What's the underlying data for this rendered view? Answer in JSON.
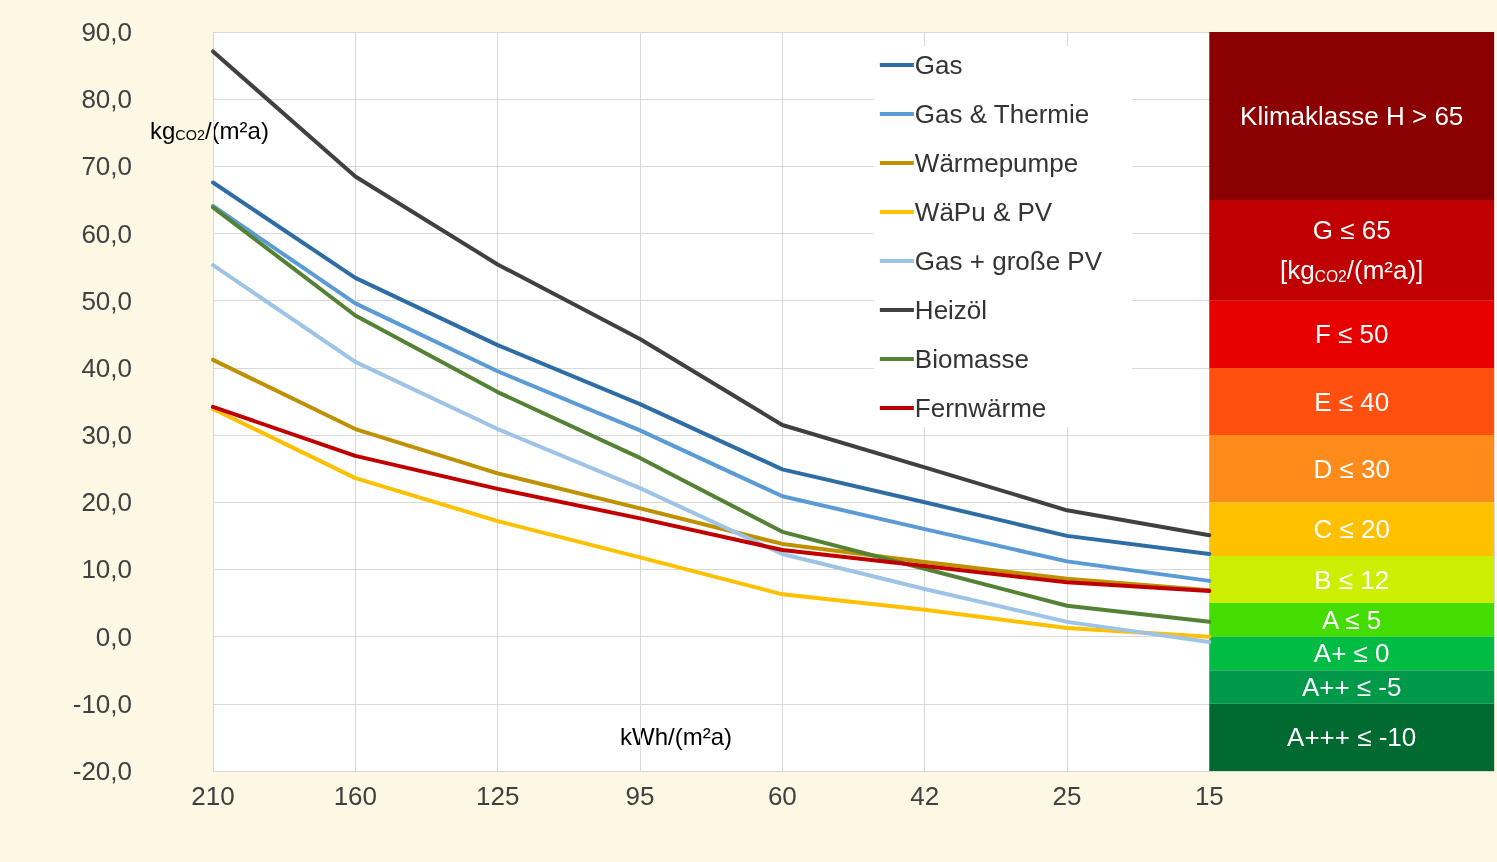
{
  "chart_data": {
    "type": "line",
    "xlabel": "kWh/(m²a)",
    "ylabel": "kg$_{CO2}$/(m²a)",
    "categories": [
      "210",
      "160",
      "125",
      "95",
      "60",
      "42",
      "25",
      "15"
    ],
    "ylim": [
      -20,
      90
    ],
    "yticks": [
      {
        "value": -20,
        "label": "-20,0"
      },
      {
        "value": -10,
        "label": "-10,0"
      },
      {
        "value": 0,
        "label": "0,0"
      },
      {
        "value": 10,
        "label": "10,0"
      },
      {
        "value": 20,
        "label": "20,0"
      },
      {
        "value": 30,
        "label": "30,0"
      },
      {
        "value": 40,
        "label": "40,0"
      },
      {
        "value": 50,
        "label": "50,0"
      },
      {
        "value": 60,
        "label": "60,0"
      },
      {
        "value": 70,
        "label": "70,0"
      },
      {
        "value": 80,
        "label": "80,0"
      },
      {
        "value": 90,
        "label": "90,0"
      }
    ],
    "grid": true,
    "legend": "top right",
    "marker": "none",
    "line_style": "solid",
    "series": [
      {
        "name": "Gas",
        "color": "#2e6da4",
        "values": [
          67.6,
          53.4,
          43.4,
          34.6,
          24.9,
          20.0,
          15.0,
          12.3
        ]
      },
      {
        "name": "Gas & Thermie",
        "color": "#5b9bd5",
        "values": [
          64.1,
          49.6,
          39.5,
          30.7,
          20.9,
          16.0,
          11.2,
          8.3
        ]
      },
      {
        "name": "Wärmepumpe",
        "color": "#bf9000",
        "values": [
          41.2,
          30.9,
          24.3,
          19.1,
          13.8,
          11.1,
          8.6,
          6.9
        ]
      },
      {
        "name": "WäPu & PV",
        "color": "#ffc000",
        "values": [
          33.9,
          23.6,
          17.2,
          11.8,
          6.3,
          4.0,
          1.3,
          0.0
        ]
      },
      {
        "name": "Gas + große PV",
        "color": "#9dc3e6",
        "values": [
          55.3,
          40.9,
          30.9,
          22.1,
          12.3,
          7.1,
          2.2,
          -0.8
        ]
      },
      {
        "name": "Heizöl",
        "color": "#404040",
        "values": [
          87.1,
          68.5,
          55.4,
          44.3,
          31.5,
          25.2,
          18.8,
          15.1
        ]
      },
      {
        "name": "Biomasse",
        "color": "#548235",
        "values": [
          63.9,
          47.8,
          36.4,
          26.6,
          15.6,
          10.1,
          4.6,
          2.2
        ]
      },
      {
        "name": "Fernwärme",
        "color": "#c00000",
        "values": [
          34.2,
          26.9,
          22.0,
          17.6,
          12.9,
          10.5,
          8.1,
          6.8
        ]
      }
    ],
    "bands": [
      {
        "axis": "y",
        "from": 65,
        "to": 90,
        "label": "Klimaklasse H > 65",
        "color": "#8b0000"
      },
      {
        "axis": "y",
        "from": 50,
        "to": 65,
        "label": "G ≤ 65 [kg$_{CO2}$/(m²a)]",
        "color": "#c00000"
      },
      {
        "axis": "y",
        "from": 40,
        "to": 50,
        "label": "F ≤ 50",
        "color": "#e80000"
      },
      {
        "axis": "y",
        "from": 30,
        "to": 40,
        "label": "E ≤ 40",
        "color": "#ff5010"
      },
      {
        "axis": "y",
        "from": 20,
        "to": 30,
        "label": "D ≤ 30",
        "color": "#ff8c1a"
      },
      {
        "axis": "y",
        "from": 12,
        "to": 20,
        "label": "C ≤ 20",
        "color": "#ffc000"
      },
      {
        "axis": "y",
        "from": 5,
        "to": 12,
        "label": "B ≤ 12",
        "color": "#ccee00"
      },
      {
        "axis": "y",
        "from": 0,
        "to": 5,
        "label": "A ≤ 5",
        "color": "#44dd00"
      },
      {
        "axis": "y",
        "from": -5,
        "to": 0,
        "label": "A+ ≤ 0",
        "color": "#00bb44"
      },
      {
        "axis": "y",
        "from": -10,
        "to": -5,
        "label": "A++ ≤ -5",
        "color": "#00994a"
      },
      {
        "axis": "y",
        "from": -20,
        "to": -10,
        "label": "A+++ ≤ -10",
        "color": "#006a30"
      }
    ]
  }
}
